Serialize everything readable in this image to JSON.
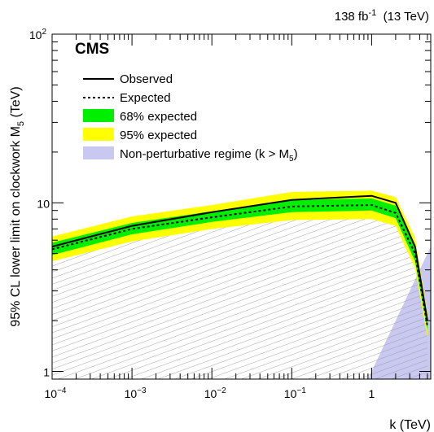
{
  "chart_data": {
    "type": "line",
    "title": "",
    "lumi_label": "138 fb",
    "lumi_exp": "-1",
    "energy_label": "(13 TeV)",
    "experiment_label": "CMS",
    "xlabel": "k (TeV)",
    "ylabel_main": "95% CL lower limit on clockwork M",
    "ylabel_sub": "5",
    "ylabel_unit": " (TeV)",
    "x_scale": "log",
    "y_scale": "log",
    "xlim": [
      0.0001,
      5.5
    ],
    "ylim": [
      0.9,
      100
    ],
    "x_ticks": [
      {
        "value": 0.0001,
        "base": "10",
        "exp": "−4"
      },
      {
        "value": 0.001,
        "base": "10",
        "exp": "−3"
      },
      {
        "value": 0.01,
        "base": "10",
        "exp": "−2"
      },
      {
        "value": 0.1,
        "base": "10",
        "exp": "−1"
      },
      {
        "value": 1,
        "base": "1",
        "exp": ""
      }
    ],
    "y_ticks": [
      {
        "value": 1,
        "base": "1",
        "exp": ""
      },
      {
        "value": 10,
        "base": "10",
        "exp": ""
      },
      {
        "value": 100,
        "base": "10",
        "exp": "2"
      }
    ],
    "x": [
      0.0001,
      0.001,
      0.01,
      0.1,
      1,
      2,
      3.5,
      5
    ],
    "series": [
      {
        "name": "Observed",
        "style": "solid",
        "values": [
          5.5,
          7.3,
          8.8,
          10.4,
          11.0,
          10.0,
          5.5,
          2.0
        ]
      },
      {
        "name": "Expected",
        "style": "dotted",
        "values": [
          5.3,
          7.0,
          8.2,
          9.5,
          9.7,
          8.7,
          5.0,
          1.85
        ]
      }
    ],
    "bands": [
      {
        "name": "68% expected",
        "color": "#00ee00",
        "lower": [
          4.9,
          6.5,
          7.7,
          8.8,
          9.0,
          8.1,
          4.5,
          1.75
        ],
        "upper": [
          5.8,
          7.6,
          8.9,
          10.4,
          10.6,
          9.6,
          5.5,
          2.0
        ]
      },
      {
        "name": "95% expected",
        "color": "#ffff00",
        "lower": [
          4.5,
          5.9,
          7.0,
          7.9,
          8.0,
          7.3,
          4.1,
          1.6
        ],
        "upper": [
          6.3,
          8.3,
          9.7,
          11.6,
          11.8,
          10.8,
          6.2,
          2.2
        ]
      }
    ],
    "regions": [
      {
        "name": "Non-perturbative regime (k > M",
        "name_sub": "5",
        "name_tail": ")",
        "color": "#c8c8f0"
      }
    ],
    "legend_position": "top-left",
    "grid": false
  }
}
